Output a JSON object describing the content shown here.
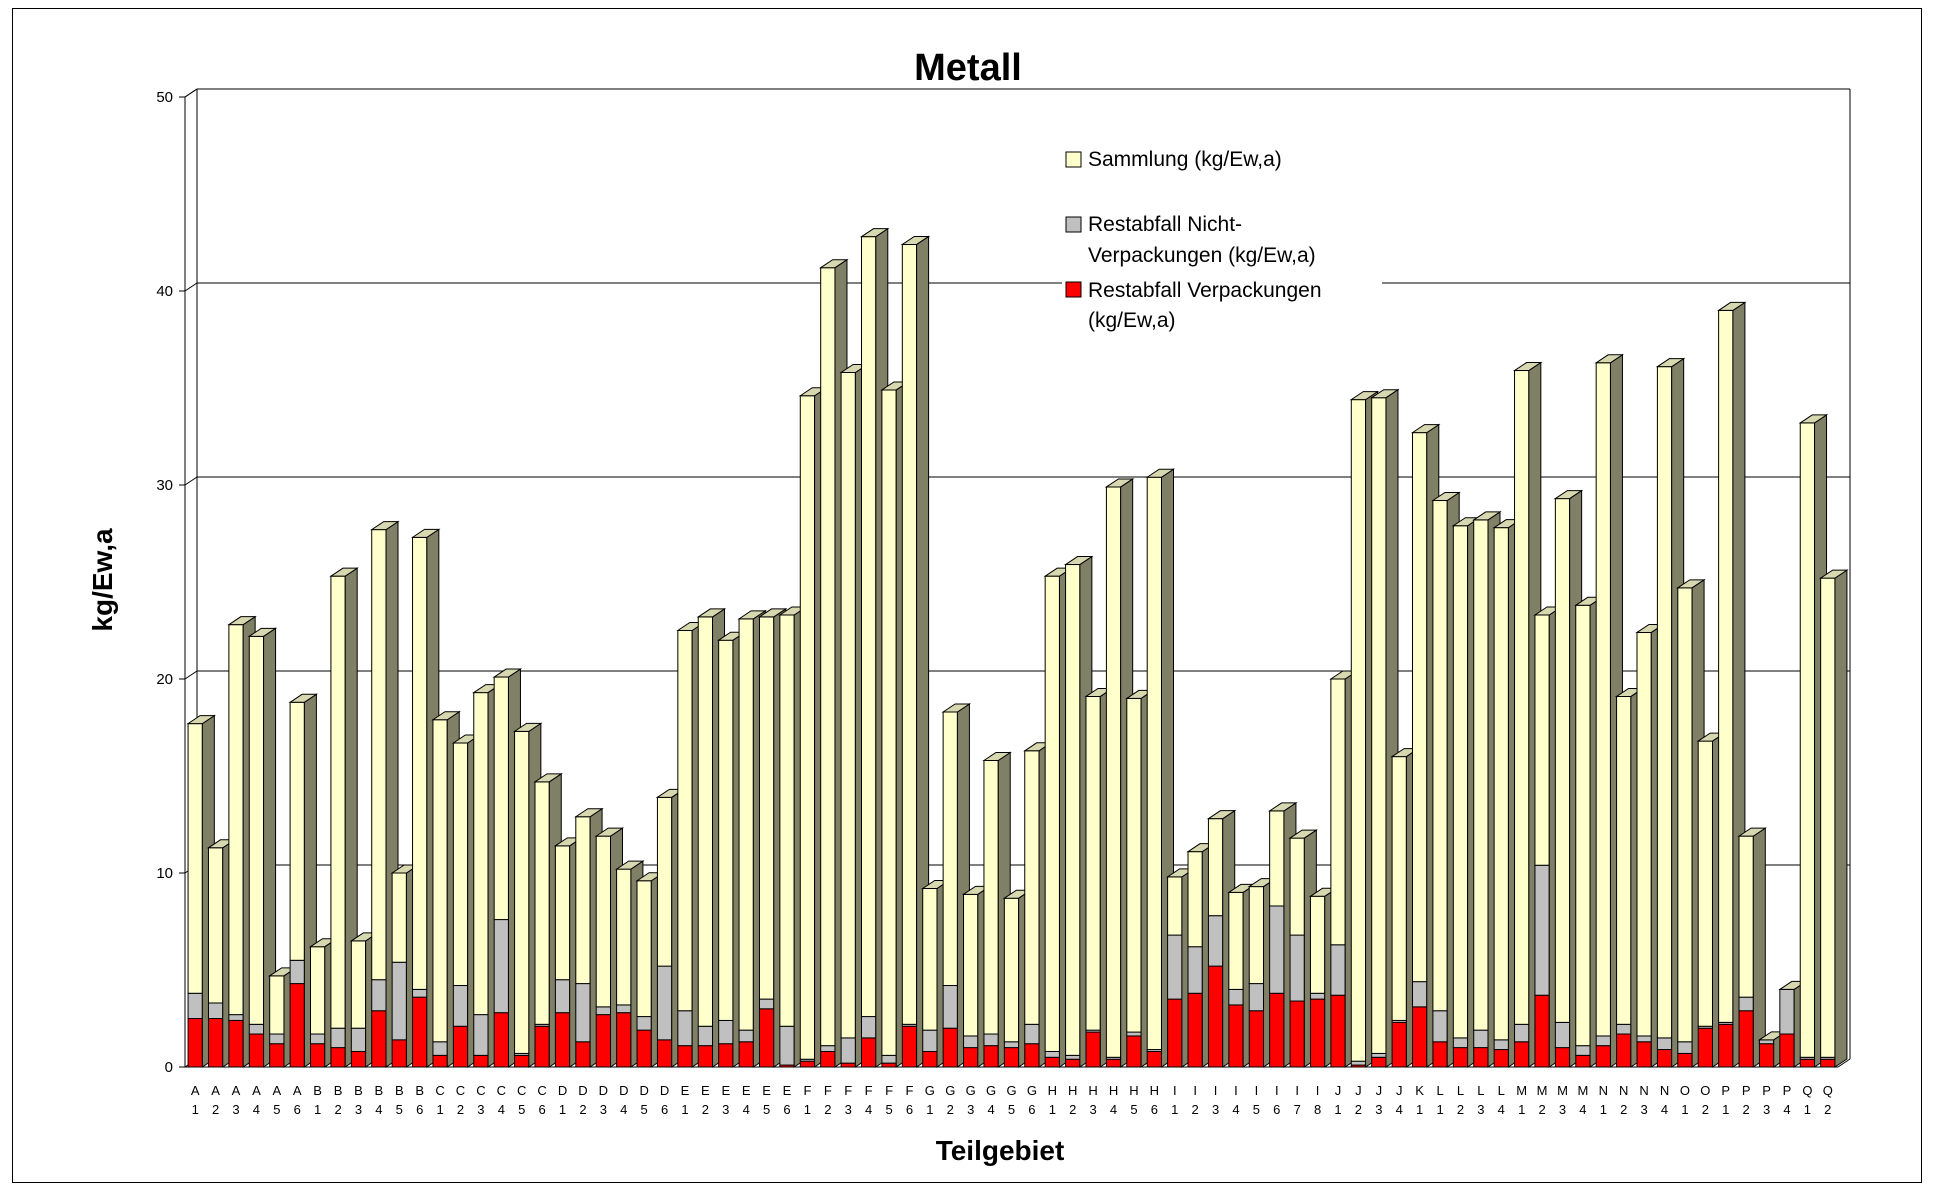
{
  "chart_data": {
    "type": "bar",
    "stacked": true,
    "three_d": true,
    "title": "Metall",
    "xlabel": "Teilgebiet",
    "ylabel": "kg/Ew,a",
    "ylim": [
      0,
      50
    ],
    "yticks": [
      "0",
      "10",
      "20",
      "30",
      "40",
      "50"
    ],
    "grid": true,
    "legend_position": "top-center",
    "categories": [
      [
        "A",
        "1"
      ],
      [
        "A",
        "2"
      ],
      [
        "A",
        "3"
      ],
      [
        "A",
        "4"
      ],
      [
        "A",
        "5"
      ],
      [
        "A",
        "6"
      ],
      [
        "B",
        "1"
      ],
      [
        "B",
        "2"
      ],
      [
        "B",
        "3"
      ],
      [
        "B",
        "4"
      ],
      [
        "B",
        "5"
      ],
      [
        "B",
        "6"
      ],
      [
        "C",
        "1"
      ],
      [
        "C",
        "2"
      ],
      [
        "C",
        "3"
      ],
      [
        "C",
        "4"
      ],
      [
        "C",
        "5"
      ],
      [
        "C",
        "6"
      ],
      [
        "D",
        "1"
      ],
      [
        "D",
        "2"
      ],
      [
        "D",
        "3"
      ],
      [
        "D",
        "4"
      ],
      [
        "D",
        "5"
      ],
      [
        "D",
        "6"
      ],
      [
        "E",
        "1"
      ],
      [
        "E",
        "2"
      ],
      [
        "E",
        "3"
      ],
      [
        "E",
        "4"
      ],
      [
        "E",
        "5"
      ],
      [
        "E",
        "6"
      ],
      [
        "F",
        "1"
      ],
      [
        "F",
        "2"
      ],
      [
        "F",
        "3"
      ],
      [
        "F",
        "4"
      ],
      [
        "F",
        "5"
      ],
      [
        "F",
        "6"
      ],
      [
        "G",
        "1"
      ],
      [
        "G",
        "2"
      ],
      [
        "G",
        "3"
      ],
      [
        "G",
        "4"
      ],
      [
        "G",
        "5"
      ],
      [
        "G",
        "6"
      ],
      [
        "H",
        "1"
      ],
      [
        "H",
        "2"
      ],
      [
        "H",
        "3"
      ],
      [
        "H",
        "4"
      ],
      [
        "H",
        "5"
      ],
      [
        "H",
        "6"
      ],
      [
        "I",
        "1"
      ],
      [
        "I",
        "2"
      ],
      [
        "I",
        "3"
      ],
      [
        "I",
        "4"
      ],
      [
        "I",
        "5"
      ],
      [
        "I",
        "6"
      ],
      [
        "I",
        "7"
      ],
      [
        "I",
        "8"
      ],
      [
        "J",
        "1"
      ],
      [
        "J",
        "2"
      ],
      [
        "J",
        "3"
      ],
      [
        "J",
        "4"
      ],
      [
        "K",
        "1"
      ],
      [
        "L",
        "1"
      ],
      [
        "L",
        "2"
      ],
      [
        "L",
        "3"
      ],
      [
        "L",
        "4"
      ],
      [
        "M",
        "1"
      ],
      [
        "M",
        "2"
      ],
      [
        "M",
        "3"
      ],
      [
        "M",
        "4"
      ],
      [
        "N",
        "1"
      ],
      [
        "N",
        "2"
      ],
      [
        "N",
        "3"
      ],
      [
        "N",
        "4"
      ],
      [
        "O",
        "1"
      ],
      [
        "O",
        "2"
      ],
      [
        "P",
        "1"
      ],
      [
        "P",
        "2"
      ],
      [
        "P",
        "3"
      ],
      [
        "P",
        "4"
      ],
      [
        "Q",
        "1"
      ],
      [
        "Q",
        "2"
      ]
    ],
    "series": [
      {
        "name": "Restabfall Verpackungen (kg/Ew,a)",
        "color": "#ff0000",
        "values": [
          2.5,
          2.5,
          2.4,
          1.7,
          1.2,
          4.3,
          1.2,
          1.0,
          0.8,
          2.9,
          1.4,
          3.6,
          0.6,
          2.1,
          0.6,
          2.8,
          0.6,
          2.1,
          2.8,
          1.3,
          2.7,
          2.8,
          1.9,
          1.4,
          1.1,
          1.1,
          1.2,
          1.3,
          3.0,
          0.1,
          0.3,
          0.8,
          0.2,
          1.5,
          0.2,
          2.1,
          0.8,
          2.0,
          1.0,
          1.1,
          1.0,
          1.2,
          0.5,
          0.4,
          1.8,
          0.4,
          1.6,
          0.8,
          3.5,
          3.8,
          5.2,
          3.2,
          2.9,
          3.8,
          3.4,
          3.5,
          3.7,
          0.1,
          0.5,
          2.3,
          3.1,
          1.3,
          1.0,
          1.0,
          0.9,
          1.3,
          3.7,
          1.0,
          0.6,
          1.1,
          1.7,
          1.3,
          0.9,
          0.7,
          2.0,
          2.2,
          2.9,
          1.2,
          1.7,
          0.4,
          0.4
        ]
      },
      {
        "name": "Restabfall Nicht-Verpackungen (kg/Ew,a)",
        "color": "#c0c0c0",
        "values": [
          1.3,
          0.8,
          0.3,
          0.5,
          0.5,
          1.2,
          0.5,
          1.0,
          1.2,
          1.6,
          4.0,
          0.4,
          0.7,
          2.1,
          2.1,
          4.8,
          0.1,
          0.1,
          1.7,
          3.0,
          0.4,
          0.4,
          0.7,
          3.8,
          1.8,
          1.0,
          1.2,
          0.6,
          0.5,
          2.0,
          0.1,
          0.3,
          1.3,
          1.1,
          0.4,
          0.1,
          1.1,
          2.2,
          0.6,
          0.6,
          0.3,
          1.0,
          0.3,
          0.2,
          0.1,
          0.1,
          0.2,
          0.1,
          3.3,
          2.4,
          2.6,
          0.8,
          1.4,
          4.5,
          3.4,
          0.3,
          2.6,
          0.2,
          0.2,
          0.1,
          1.3,
          1.6,
          0.5,
          0.9,
          0.5,
          0.9,
          6.7,
          1.3,
          0.5,
          0.5,
          0.5,
          0.3,
          0.6,
          0.6,
          0.1,
          0.1,
          0.7,
          0.2,
          2.3,
          0.1,
          0.1
        ]
      },
      {
        "name": "Sammlung  (kg/Ew,a)",
        "color": "#ffffcc",
        "values": [
          13.9,
          8.0,
          20.1,
          20.0,
          3.0,
          13.3,
          4.5,
          23.3,
          4.5,
          23.2,
          4.6,
          23.3,
          16.6,
          12.5,
          16.6,
          12.5,
          16.6,
          12.5,
          6.9,
          8.6,
          8.8,
          7.0,
          7.0,
          8.7,
          19.6,
          21.1,
          19.6,
          21.2,
          19.7,
          21.2,
          34.2,
          40.1,
          34.3,
          40.2,
          34.3,
          40.2,
          7.3,
          14.1,
          7.3,
          14.1,
          7.4,
          14.1,
          24.5,
          25.3,
          17.2,
          29.4,
          17.2,
          29.5,
          3.0,
          4.9,
          5.0,
          5.0,
          5.0,
          4.9,
          5.0,
          5.0,
          13.7,
          34.1,
          33.8,
          13.6,
          28.3,
          26.3,
          26.4,
          26.3,
          26.4,
          33.7,
          12.9,
          27.0,
          22.7,
          34.7,
          16.9,
          20.8,
          34.6,
          23.4,
          14.7,
          36.7,
          8.3,
          0.0,
          0.0,
          32.7,
          24.7
        ]
      }
    ],
    "legend": {
      "sammlung": "Sammlung  (kg/Ew,a)",
      "nicht_line1": "Restabfall Nicht-",
      "nicht_line2": "Verpackungen (kg/Ew,a)",
      "verp_line1": "Restabfall Verpackungen",
      "verp_line2": "(kg/Ew,a)"
    },
    "side_color": "#808066",
    "top_color": "#d8d8b0"
  }
}
